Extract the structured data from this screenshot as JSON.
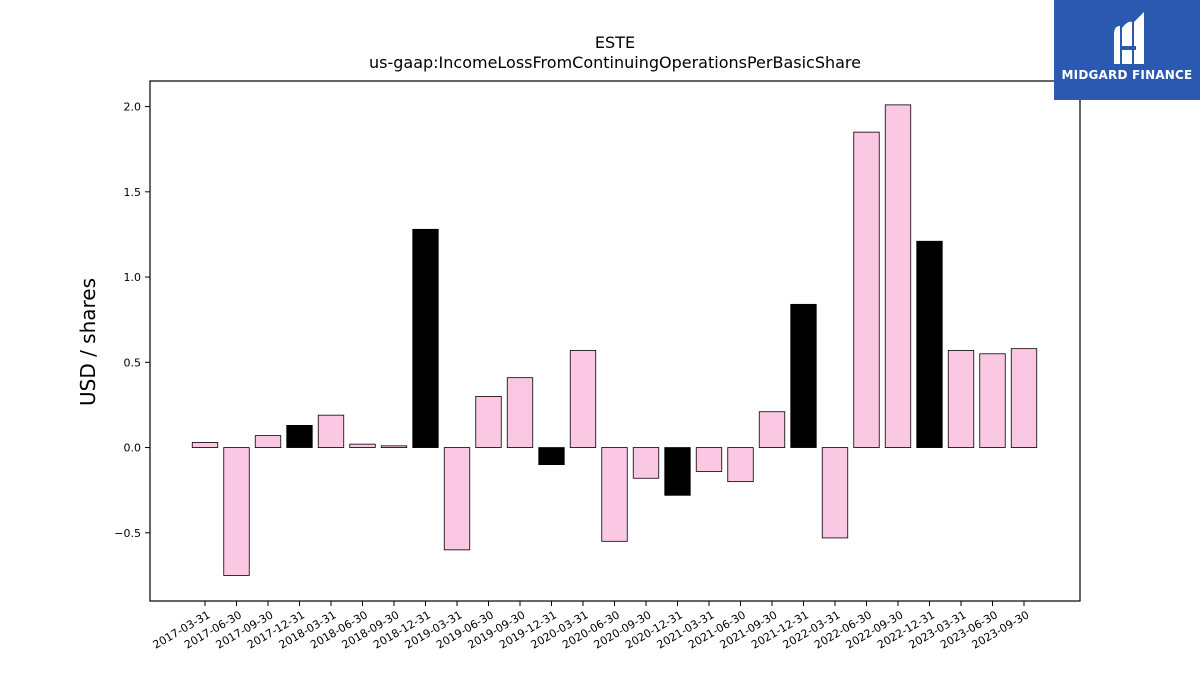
{
  "brand": {
    "logo_text": "MIDGARD FINANCE",
    "logo_color": "#2b59b0"
  },
  "chart_data": {
    "type": "bar",
    "title": "ESTE",
    "subtitle": "us-gaap:IncomeLossFromContinuingOperationsPerBasicShare",
    "xlabel": "",
    "ylabel": "USD / shares",
    "ylim": [
      -0.9,
      2.15
    ],
    "yticks": [
      -0.5,
      0.0,
      0.5,
      1.0,
      1.5,
      2.0
    ],
    "ytick_labels": [
      "−0.5",
      "0.0",
      "0.5",
      "1.0",
      "1.5",
      "2.0"
    ],
    "grid": false,
    "colors": {
      "quarter": "#fbc8e3",
      "year_end": "#000000",
      "edge": "#000000"
    },
    "categories": [
      "2017-03-31",
      "2017-06-30",
      "2017-09-30",
      "2017-12-31",
      "2018-03-31",
      "2018-06-30",
      "2018-09-30",
      "2018-12-31",
      "2019-03-31",
      "2019-06-30",
      "2019-09-30",
      "2019-12-31",
      "2020-03-31",
      "2020-06-30",
      "2020-09-30",
      "2020-12-31",
      "2021-03-31",
      "2021-06-30",
      "2021-09-30",
      "2021-12-31",
      "2022-03-31",
      "2022-06-30",
      "2022-09-30",
      "2022-12-31",
      "2023-03-31",
      "2023-06-30",
      "2023-09-30"
    ],
    "values": [
      0.03,
      -0.75,
      0.07,
      0.13,
      0.19,
      0.02,
      0.01,
      1.28,
      -0.6,
      0.3,
      0.41,
      -0.1,
      0.57,
      -0.55,
      -0.18,
      -0.28,
      -0.14,
      -0.2,
      0.21,
      0.84,
      -0.53,
      1.85,
      2.01,
      1.21,
      0.57,
      0.55,
      0.58
    ],
    "year_end": [
      false,
      false,
      false,
      true,
      false,
      false,
      false,
      true,
      false,
      false,
      false,
      true,
      false,
      false,
      false,
      true,
      false,
      false,
      false,
      true,
      false,
      false,
      false,
      true,
      false,
      false,
      false
    ]
  }
}
